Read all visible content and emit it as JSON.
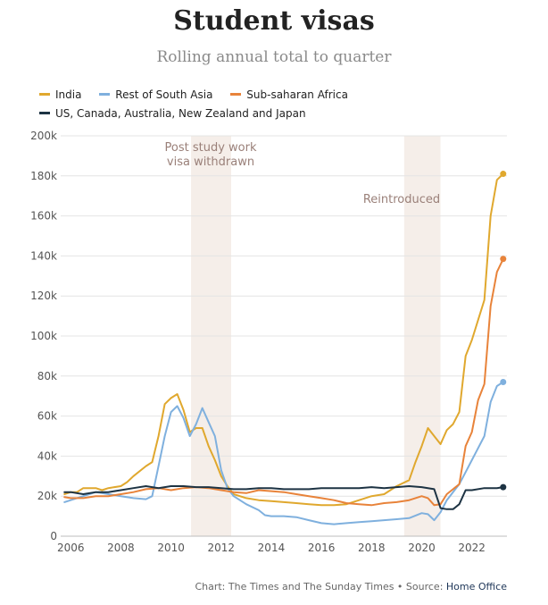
{
  "header": {
    "title": "Student visas",
    "subtitle": "Rolling annual total to quarter"
  },
  "legend": {
    "items": [
      {
        "label": "India",
        "color": "#e0a82e"
      },
      {
        "label": "Rest of South Asia",
        "color": "#7fb0de"
      },
      {
        "label": "Sub-saharan Africa",
        "color": "#e8833a"
      },
      {
        "label": "US, Canada, Australia, New Zealand and Japan",
        "color": "#1d3343"
      }
    ]
  },
  "footer": {
    "credit": "Chart: The Times and The Sunday Times • Source: ",
    "source_link": "Home Office"
  },
  "chart_data": {
    "type": "line",
    "title": "Student visas",
    "subtitle": "Rolling annual total to quarter",
    "xlabel": "",
    "ylabel": "",
    "xlim": [
      2005.6,
      2023.4
    ],
    "ylim": [
      0,
      200000
    ],
    "x_ticks": [
      2006,
      2008,
      2010,
      2012,
      2014,
      2016,
      2018,
      2020,
      2022
    ],
    "x_tick_labels": [
      "2006",
      "2008",
      "2010",
      "2012",
      "2014",
      "2016",
      "2018",
      "2020",
      "2022"
    ],
    "y_ticks": [
      0,
      20000,
      40000,
      60000,
      80000,
      100000,
      120000,
      140000,
      160000,
      180000,
      200000
    ],
    "y_tick_labels": [
      "0",
      "20k",
      "40k",
      "60k",
      "80k",
      "100k",
      "120k",
      "140k",
      "160k",
      "180k",
      "200k"
    ],
    "grid": true,
    "annotations": [
      {
        "label": "Post study work visa withdrawn",
        "lines": [
          "Post study work",
          "visa withdrawn"
        ],
        "x_start": 2010.8,
        "x_end": 2012.4
      },
      {
        "label": "Reintroduced",
        "lines": [
          "Reintroduced"
        ],
        "x_start": 2019.3,
        "x_end": 2020.75
      }
    ],
    "series": [
      {
        "name": "India",
        "color": "#e0a82e",
        "points": [
          [
            2005.75,
            21000
          ],
          [
            2006.0,
            22000
          ],
          [
            2006.25,
            22000
          ],
          [
            2006.5,
            24000
          ],
          [
            2007.0,
            24000
          ],
          [
            2007.25,
            23000
          ],
          [
            2007.5,
            24000
          ],
          [
            2008.0,
            25000
          ],
          [
            2008.25,
            27000
          ],
          [
            2008.5,
            30000
          ],
          [
            2009.0,
            35000
          ],
          [
            2009.25,
            37000
          ],
          [
            2009.5,
            50000
          ],
          [
            2009.75,
            66000
          ],
          [
            2010.0,
            69000
          ],
          [
            2010.25,
            71000
          ],
          [
            2010.5,
            63000
          ],
          [
            2010.75,
            52000
          ],
          [
            2011.0,
            54000
          ],
          [
            2011.25,
            54000
          ],
          [
            2011.5,
            45000
          ],
          [
            2011.75,
            38000
          ],
          [
            2012.0,
            30000
          ],
          [
            2012.25,
            25000
          ],
          [
            2012.5,
            21000
          ],
          [
            2013.0,
            19000
          ],
          [
            2013.5,
            18000
          ],
          [
            2014.0,
            17500
          ],
          [
            2014.5,
            17000
          ],
          [
            2015.0,
            16500
          ],
          [
            2015.5,
            16000
          ],
          [
            2016.0,
            15500
          ],
          [
            2016.5,
            15500
          ],
          [
            2017.0,
            16000
          ],
          [
            2017.5,
            18000
          ],
          [
            2018.0,
            20000
          ],
          [
            2018.5,
            21000
          ],
          [
            2019.0,
            25000
          ],
          [
            2019.5,
            28000
          ],
          [
            2019.75,
            37000
          ],
          [
            2020.0,
            45000
          ],
          [
            2020.25,
            54000
          ],
          [
            2020.5,
            50000
          ],
          [
            2020.75,
            46000
          ],
          [
            2021.0,
            53000
          ],
          [
            2021.25,
            56000
          ],
          [
            2021.5,
            62000
          ],
          [
            2021.75,
            90000
          ],
          [
            2022.0,
            98000
          ],
          [
            2022.25,
            108000
          ],
          [
            2022.5,
            118000
          ],
          [
            2022.75,
            160000
          ],
          [
            2023.0,
            178000
          ],
          [
            2023.25,
            181000
          ]
        ]
      },
      {
        "name": "Rest of South Asia",
        "color": "#7fb0de",
        "points": [
          [
            2005.75,
            17000
          ],
          [
            2006.0,
            18000
          ],
          [
            2006.5,
            20000
          ],
          [
            2007.0,
            22000
          ],
          [
            2007.5,
            21000
          ],
          [
            2008.0,
            20000
          ],
          [
            2008.5,
            19000
          ],
          [
            2009.0,
            18500
          ],
          [
            2009.25,
            20000
          ],
          [
            2009.5,
            35000
          ],
          [
            2009.75,
            50000
          ],
          [
            2010.0,
            62000
          ],
          [
            2010.25,
            65000
          ],
          [
            2010.5,
            59000
          ],
          [
            2010.75,
            50000
          ],
          [
            2011.0,
            56000
          ],
          [
            2011.25,
            64000
          ],
          [
            2011.5,
            57000
          ],
          [
            2011.75,
            50000
          ],
          [
            2012.0,
            33000
          ],
          [
            2012.25,
            24000
          ],
          [
            2012.5,
            20000
          ],
          [
            2013.0,
            16000
          ],
          [
            2013.5,
            13000
          ],
          [
            2013.75,
            10500
          ],
          [
            2014.0,
            10000
          ],
          [
            2014.5,
            10000
          ],
          [
            2015.0,
            9500
          ],
          [
            2015.5,
            8000
          ],
          [
            2016.0,
            6500
          ],
          [
            2016.5,
            6000
          ],
          [
            2017.0,
            6500
          ],
          [
            2017.5,
            7000
          ],
          [
            2018.0,
            7500
          ],
          [
            2018.5,
            8000
          ],
          [
            2019.0,
            8500
          ],
          [
            2019.5,
            9000
          ],
          [
            2020.0,
            11500
          ],
          [
            2020.25,
            11000
          ],
          [
            2020.5,
            8000
          ],
          [
            2020.75,
            12000
          ],
          [
            2021.0,
            18000
          ],
          [
            2021.25,
            22000
          ],
          [
            2021.5,
            26000
          ],
          [
            2021.75,
            32000
          ],
          [
            2022.0,
            38000
          ],
          [
            2022.25,
            44000
          ],
          [
            2022.5,
            50000
          ],
          [
            2022.75,
            67000
          ],
          [
            2023.0,
            75000
          ],
          [
            2023.25,
            77000
          ]
        ]
      },
      {
        "name": "Sub-saharan Africa",
        "color": "#e8833a",
        "points": [
          [
            2005.75,
            19500
          ],
          [
            2006.0,
            19000
          ],
          [
            2006.5,
            19000
          ],
          [
            2007.0,
            20000
          ],
          [
            2007.5,
            20000
          ],
          [
            2008.0,
            21000
          ],
          [
            2008.5,
            22000
          ],
          [
            2009.0,
            23500
          ],
          [
            2009.5,
            24000
          ],
          [
            2010.0,
            23000
          ],
          [
            2010.5,
            24000
          ],
          [
            2011.0,
            24500
          ],
          [
            2011.5,
            24000
          ],
          [
            2012.0,
            23000
          ],
          [
            2012.5,
            22000
          ],
          [
            2013.0,
            21500
          ],
          [
            2013.5,
            23000
          ],
          [
            2014.0,
            22500
          ],
          [
            2014.5,
            22000
          ],
          [
            2015.0,
            21000
          ],
          [
            2015.5,
            20000
          ],
          [
            2016.0,
            19000
          ],
          [
            2016.5,
            18000
          ],
          [
            2017.0,
            16500
          ],
          [
            2017.5,
            16000
          ],
          [
            2018.0,
            15500
          ],
          [
            2018.5,
            16500
          ],
          [
            2019.0,
            17000
          ],
          [
            2019.5,
            18000
          ],
          [
            2020.0,
            20000
          ],
          [
            2020.25,
            19000
          ],
          [
            2020.5,
            15500
          ],
          [
            2020.75,
            16000
          ],
          [
            2021.0,
            21000
          ],
          [
            2021.5,
            26000
          ],
          [
            2021.75,
            45000
          ],
          [
            2022.0,
            52000
          ],
          [
            2022.25,
            68000
          ],
          [
            2022.5,
            76000
          ],
          [
            2022.75,
            115000
          ],
          [
            2023.0,
            132000
          ],
          [
            2023.25,
            138500
          ]
        ]
      },
      {
        "name": "US, Canada, Australia, New Zealand and Japan",
        "color": "#1d3343",
        "points": [
          [
            2005.75,
            22000
          ],
          [
            2006.0,
            22000
          ],
          [
            2006.5,
            21000
          ],
          [
            2007.0,
            22000
          ],
          [
            2007.5,
            22000
          ],
          [
            2008.0,
            23000
          ],
          [
            2008.5,
            24000
          ],
          [
            2009.0,
            25000
          ],
          [
            2009.5,
            24000
          ],
          [
            2010.0,
            25000
          ],
          [
            2010.5,
            25000
          ],
          [
            2011.0,
            24500
          ],
          [
            2011.5,
            24500
          ],
          [
            2012.0,
            24000
          ],
          [
            2012.5,
            23500
          ],
          [
            2013.0,
            23500
          ],
          [
            2013.5,
            24000
          ],
          [
            2014.0,
            24000
          ],
          [
            2014.5,
            23500
          ],
          [
            2015.0,
            23500
          ],
          [
            2015.5,
            23500
          ],
          [
            2016.0,
            24000
          ],
          [
            2016.5,
            24000
          ],
          [
            2017.0,
            24000
          ],
          [
            2017.5,
            24000
          ],
          [
            2018.0,
            24500
          ],
          [
            2018.5,
            24000
          ],
          [
            2019.0,
            24500
          ],
          [
            2019.5,
            25000
          ],
          [
            2020.0,
            24500
          ],
          [
            2020.5,
            23500
          ],
          [
            2020.75,
            14000
          ],
          [
            2021.0,
            13500
          ],
          [
            2021.25,
            13500
          ],
          [
            2021.5,
            16000
          ],
          [
            2021.75,
            23000
          ],
          [
            2022.0,
            23000
          ],
          [
            2022.5,
            24000
          ],
          [
            2023.0,
            24000
          ],
          [
            2023.25,
            24500
          ]
        ]
      }
    ]
  }
}
